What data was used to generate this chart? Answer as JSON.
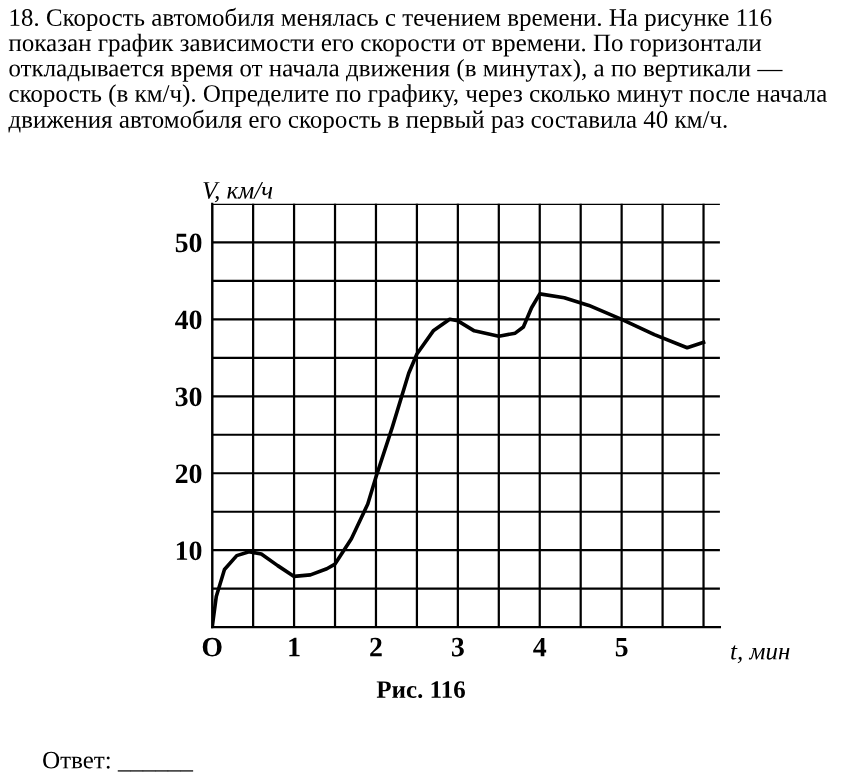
{
  "chart_data": {
    "type": "line",
    "title": "18. Скорость автомобиля менялась с течением времени. На рисунке 116 показан график зависимости его скорости от времени. По горизонтали откладывается время от начала движения (в минутах), а по вертикали — скорость (в км/ч). Определите по графику, через сколько минут после начала движения автомобиля его скорость в первый раз составила 40 км/ч.",
    "xlabel": "t, мин",
    "ylabel": "V, км/ч",
    "x": [
      0,
      0.05,
      0.15,
      0.3,
      0.45,
      0.6,
      0.8,
      1.0,
      1.2,
      1.4,
      1.5,
      1.7,
      1.9,
      2.0,
      2.2,
      2.4,
      2.5,
      2.7,
      2.9,
      3.0,
      3.2,
      3.5,
      3.7,
      3.8,
      3.9,
      4.0,
      4.3,
      4.6,
      5.0,
      5.4,
      5.8,
      6.0
    ],
    "series": [
      {
        "color": "#000000",
        "values": [
          0,
          4,
          7.5,
          9.3,
          9.8,
          9.5,
          8,
          6.6,
          6.8,
          7.6,
          8.2,
          11.5,
          16,
          19.5,
          26,
          33,
          35.5,
          38.5,
          40,
          39.8,
          38.5,
          37.8,
          38.2,
          39,
          41.5,
          43.3,
          42.8,
          41.8,
          40,
          38,
          36.3,
          37
        ]
      }
    ],
    "xlim": [
      0,
      6.2
    ],
    "ylim": [
      0,
      55
    ],
    "xticks": [
      {
        "value": 0,
        "label": "O"
      },
      1,
      2,
      3,
      4,
      5
    ],
    "yticks": [
      10,
      20,
      30,
      40,
      50
    ],
    "grid": true,
    "legend": false,
    "marker": "none",
    "line_style": "solid",
    "annotations": [
      "Рис. 116",
      "Ответ: ______"
    ]
  }
}
